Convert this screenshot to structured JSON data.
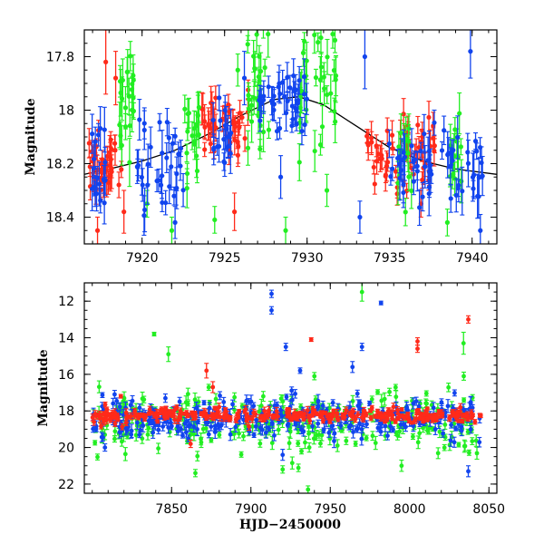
{
  "colors": {
    "red": "#ff2a1a",
    "green": "#22ee22",
    "blue": "#1144ee",
    "model": "#000000"
  },
  "chart_data": [
    {
      "type": "scatter",
      "panel": "top",
      "xlabel": "",
      "ylabel": "Magnitude",
      "xlim": [
        7916.5,
        7941.5
      ],
      "ylim": [
        18.5,
        17.7
      ],
      "y_inverted": true,
      "xticks": [
        7920,
        7925,
        7930,
        7935,
        7940
      ],
      "yticks": [
        17.8,
        18,
        18.2,
        18.4
      ],
      "model_curve": {
        "x": [
          7916.5,
          7918,
          7920,
          7922,
          7924,
          7926,
          7928,
          7929.5,
          7931,
          7933,
          7935,
          7937,
          7939,
          7941.5
        ],
        "y": [
          18.24,
          18.22,
          18.19,
          18.15,
          18.09,
          18.02,
          17.96,
          17.95,
          17.98,
          18.06,
          18.14,
          18.19,
          18.22,
          18.24
        ]
      },
      "series": [
        {
          "name": "",
          "color_key": "red",
          "clusters": [
            {
              "x0": 7916.6,
              "x1": 7918.8,
              "n": 40,
              "ymean": 18.22,
              "sd": 0.06,
              "err": 0.035
            },
            {
              "x0": 7923.5,
              "x1": 7926.5,
              "n": 40,
              "ymean": 18.06,
              "sd": 0.06,
              "err": 0.035
            },
            {
              "x0": 7933.6,
              "x1": 7937.8,
              "n": 55,
              "ymean": 18.16,
              "sd": 0.06,
              "err": 0.035
            }
          ],
          "points": [
            {
              "x": 7917.8,
              "y": 17.82,
              "err": 0.12
            },
            {
              "x": 7918.4,
              "y": 17.88,
              "err": 0.1
            },
            {
              "x": 7918.9,
              "y": 18.38,
              "err": 0.08
            },
            {
              "x": 7925.6,
              "y": 18.38,
              "err": 0.07
            },
            {
              "x": 7936.9,
              "y": 18.35,
              "err": 0.05
            },
            {
              "x": 7917.3,
              "y": 18.45,
              "err": 0.05
            }
          ]
        },
        {
          "name": "",
          "color_key": "green",
          "clusters": [
            {
              "x0": 7918.5,
              "x1": 7919.5,
              "n": 22,
              "ymean": 17.98,
              "sd": 0.1,
              "err": 0.05
            },
            {
              "x0": 7922.5,
              "x1": 7923.5,
              "n": 18,
              "ymean": 18.08,
              "sd": 0.08,
              "err": 0.05
            },
            {
              "x0": 7926.4,
              "x1": 7927.8,
              "n": 28,
              "ymean": 17.9,
              "sd": 0.12,
              "err": 0.05
            },
            {
              "x0": 7929.5,
              "x1": 7931.8,
              "n": 34,
              "ymean": 17.92,
              "sd": 0.14,
              "err": 0.05
            },
            {
              "x0": 7935.5,
              "x1": 7936.5,
              "n": 14,
              "ymean": 18.18,
              "sd": 0.1,
              "err": 0.05
            },
            {
              "x0": 7938.6,
              "x1": 7939.4,
              "n": 14,
              "ymean": 18.12,
              "sd": 0.1,
              "err": 0.05
            }
          ],
          "points": [
            {
              "x": 7921.8,
              "y": 18.45,
              "err": 0.05
            },
            {
              "x": 7924.4,
              "y": 18.41,
              "err": 0.05
            },
            {
              "x": 7925.8,
              "y": 17.85,
              "err": 0.06
            },
            {
              "x": 7931.2,
              "y": 18.3,
              "err": 0.06
            },
            {
              "x": 7928.7,
              "y": 18.45,
              "err": 0.05
            },
            {
              "x": 7938.5,
              "y": 18.42,
              "err": 0.05
            },
            {
              "x": 7920.3,
              "y": 18.35,
              "err": 0.05
            }
          ]
        },
        {
          "name": "",
          "color_key": "blue",
          "clusters": [
            {
              "x0": 7916.8,
              "x1": 7917.8,
              "n": 18,
              "ymean": 18.24,
              "sd": 0.08,
              "err": 0.05
            },
            {
              "x0": 7919.6,
              "x1": 7922.6,
              "n": 36,
              "ymean": 18.18,
              "sd": 0.08,
              "err": 0.05
            },
            {
              "x0": 7924.2,
              "x1": 7925.4,
              "n": 18,
              "ymean": 18.1,
              "sd": 0.08,
              "err": 0.05
            },
            {
              "x0": 7926.8,
              "x1": 7930.0,
              "n": 40,
              "ymean": 17.97,
              "sd": 0.06,
              "err": 0.04
            },
            {
              "x0": 7934.8,
              "x1": 7940.8,
              "n": 60,
              "ymean": 18.2,
              "sd": 0.08,
              "err": 0.05
            }
          ],
          "points": [
            {
              "x": 7928.4,
              "y": 18.25,
              "err": 0.08
            },
            {
              "x": 7933.5,
              "y": 17.8,
              "err": 0.12
            },
            {
              "x": 7939.9,
              "y": 17.78,
              "err": 0.1
            },
            {
              "x": 7922.0,
              "y": 18.42,
              "err": 0.06
            },
            {
              "x": 7926.2,
              "y": 17.88,
              "err": 0.1
            },
            {
              "x": 7940.5,
              "y": 18.45,
              "err": 0.06
            },
            {
              "x": 7933.2,
              "y": 18.4,
              "err": 0.06
            }
          ]
        }
      ]
    },
    {
      "type": "scatter",
      "panel": "bottom",
      "xlabel": "HJD−2450000",
      "ylabel": "Magnitude",
      "xlim": [
        7795,
        8055
      ],
      "ylim": [
        22.5,
        11
      ],
      "y_inverted": true,
      "xticks": [
        7850,
        7900,
        7950,
        8000,
        8050
      ],
      "yticks": [
        12,
        14,
        16,
        18,
        20,
        22
      ],
      "series": [
        {
          "name": "",
          "color_key": "green",
          "clusters": [
            {
              "x0": 7800,
              "x1": 8045,
              "n": 280,
              "ymean": 18.6,
              "sd": 0.9,
              "err": 0.2
            }
          ],
          "points": [
            {
              "x": 7839,
              "y": 13.8,
              "err": 0.1
            },
            {
              "x": 7848,
              "y": 14.9,
              "err": 0.4
            },
            {
              "x": 7970,
              "y": 11.5,
              "err": 0.5
            },
            {
              "x": 7940,
              "y": 16.1,
              "err": 0.2
            },
            {
              "x": 8034,
              "y": 14.3,
              "err": 0.6
            },
            {
              "x": 7936,
              "y": 22.3,
              "err": 0.2
            },
            {
              "x": 7920,
              "y": 21.2,
              "err": 0.2
            },
            {
              "x": 7865,
              "y": 21.4,
              "err": 0.2
            }
          ]
        },
        {
          "name": "",
          "color_key": "blue",
          "clusters": [
            {
              "x0": 7800,
              "x1": 8045,
              "n": 320,
              "ymean": 18.4,
              "sd": 0.55,
              "err": 0.2
            }
          ],
          "points": [
            {
              "x": 7913,
              "y": 11.6,
              "err": 0.2
            },
            {
              "x": 7913,
              "y": 12.5,
              "err": 0.2
            },
            {
              "x": 7922,
              "y": 14.5,
              "err": 0.2
            },
            {
              "x": 7931,
              "y": 15.8,
              "err": 0.15
            },
            {
              "x": 7964,
              "y": 15.6,
              "err": 0.3
            },
            {
              "x": 7970,
              "y": 14.5,
              "err": 0.2
            },
            {
              "x": 7982,
              "y": 12.1,
              "err": 0.1
            },
            {
              "x": 8037,
              "y": 21.3,
              "err": 0.3
            },
            {
              "x": 7808,
              "y": 20.0,
              "err": 0.2
            },
            {
              "x": 7920,
              "y": 20.4,
              "err": 0.3
            }
          ]
        },
        {
          "name": "",
          "color_key": "red",
          "clusters": [
            {
              "x0": 7800,
              "x1": 8045,
              "n": 320,
              "ymean": 18.25,
              "sd": 0.18,
              "err": 0.12
            }
          ],
          "points": [
            {
              "x": 7818,
              "y": 17.2,
              "err": 0.1
            },
            {
              "x": 7872,
              "y": 15.8,
              "err": 0.4
            },
            {
              "x": 7876,
              "y": 16.7,
              "err": 0.3
            },
            {
              "x": 7938,
              "y": 14.1,
              "err": 0.1
            },
            {
              "x": 8005,
              "y": 14.2,
              "err": 0.2
            },
            {
              "x": 8005,
              "y": 14.6,
              "err": 0.2
            },
            {
              "x": 8037,
              "y": 13.0,
              "err": 0.2
            },
            {
              "x": 8032,
              "y": 17.8,
              "err": 0.2
            },
            {
              "x": 7862,
              "y": 19.8,
              "err": 0.2
            }
          ]
        }
      ]
    }
  ]
}
